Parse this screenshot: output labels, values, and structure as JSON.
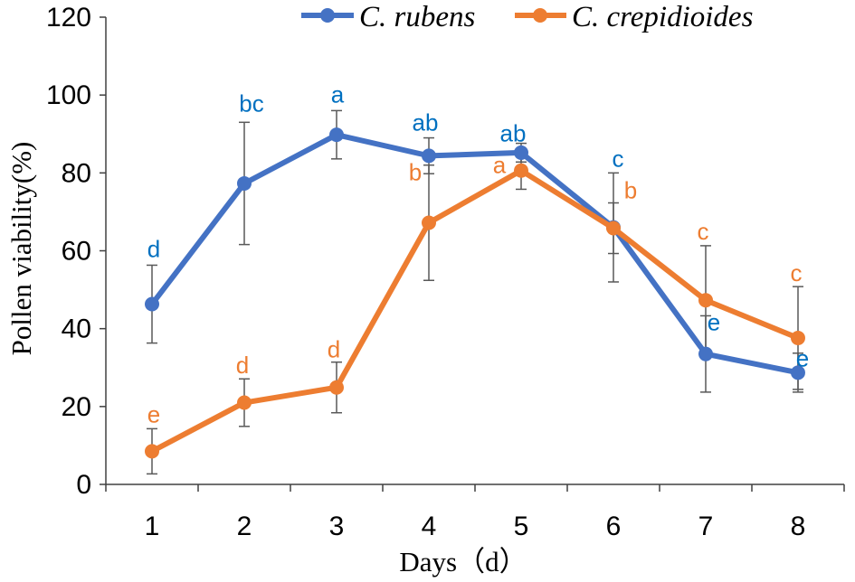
{
  "chart_data": {
    "type": "line",
    "xlabel": "Days（d）",
    "ylabel": "Pollen viability(%)",
    "categories": [
      "1",
      "2",
      "3",
      "4",
      "5",
      "6",
      "7",
      "8"
    ],
    "ylim": [
      0,
      120
    ],
    "yticks": [
      0,
      20,
      40,
      60,
      80,
      100,
      120
    ],
    "grid": false,
    "legend": "top",
    "axis_color": "#404040",
    "error_bar_color": "#595959",
    "series": [
      {
        "name": "C. rubens",
        "line_color": "#4472C4",
        "label_color": "#0070C0",
        "values": [
          46.3,
          77.3,
          89.8,
          84.4,
          85.2,
          66.0,
          33.5,
          28.7
        ],
        "errors": [
          10.0,
          15.7,
          6.2,
          4.6,
          2.4,
          14.0,
          9.8,
          5.0
        ],
        "letters": [
          "d",
          "bc",
          "a",
          "ab",
          "ab",
          "c",
          "e",
          "e"
        ]
      },
      {
        "name": "C. crepidioides",
        "line_color": "#ED7D31",
        "label_color": "#ED7D31",
        "values": [
          8.5,
          21.0,
          24.9,
          67.2,
          80.6,
          65.8,
          47.3,
          37.6
        ],
        "errors": [
          5.8,
          6.1,
          6.5,
          14.8,
          4.8,
          6.5,
          14.0,
          13.2
        ],
        "letters": [
          "e",
          "d",
          "d",
          "b",
          "a",
          "b",
          "c",
          "c"
        ]
      }
    ]
  }
}
